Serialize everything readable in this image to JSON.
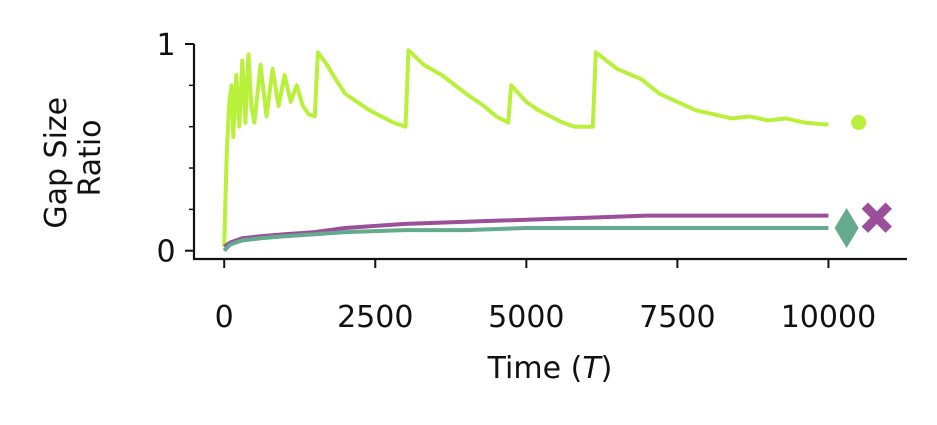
{
  "chart_data": {
    "type": "line",
    "xlabel_prefix": "Time (",
    "xlabel_var": "T",
    "xlabel_suffix": ")",
    "ylabel_lines": [
      "Gap Size",
      "Ratio"
    ],
    "xlim": [
      -500,
      11300
    ],
    "ylim": [
      -0.04,
      1.0
    ],
    "x_ticks": [
      0,
      2500,
      5000,
      7500,
      10000
    ],
    "x_tick_labels": [
      "0",
      "2500",
      "5000",
      "7500",
      "10000"
    ],
    "y_ticks": [
      0,
      1
    ],
    "y_tick_labels": [
      "0",
      "1"
    ],
    "y_minor_ticks": [
      0.2,
      0.4,
      0.6,
      0.8
    ],
    "grid": false,
    "legend": "none",
    "series": [
      {
        "color": "#b9f03c",
        "marker": "circle",
        "marker_x": 10500,
        "marker_y": 0.62,
        "points": [
          [
            0,
            0.02
          ],
          [
            40,
            0.45
          ],
          [
            80,
            0.7
          ],
          [
            120,
            0.8
          ],
          [
            150,
            0.55
          ],
          [
            200,
            0.85
          ],
          [
            250,
            0.6
          ],
          [
            300,
            0.92
          ],
          [
            350,
            0.62
          ],
          [
            400,
            0.95
          ],
          [
            450,
            0.7
          ],
          [
            500,
            0.62
          ],
          [
            600,
            0.9
          ],
          [
            700,
            0.65
          ],
          [
            800,
            0.88
          ],
          [
            900,
            0.7
          ],
          [
            1000,
            0.85
          ],
          [
            1100,
            0.72
          ],
          [
            1200,
            0.8
          ],
          [
            1300,
            0.7
          ],
          [
            1400,
            0.66
          ],
          [
            1500,
            0.65
          ],
          [
            1550,
            0.96
          ],
          [
            1700,
            0.9
          ],
          [
            1800,
            0.85
          ],
          [
            2000,
            0.76
          ],
          [
            2200,
            0.72
          ],
          [
            2400,
            0.68
          ],
          [
            2600,
            0.65
          ],
          [
            2800,
            0.62
          ],
          [
            3000,
            0.6
          ],
          [
            3050,
            0.97
          ],
          [
            3300,
            0.9
          ],
          [
            3600,
            0.85
          ],
          [
            4000,
            0.76
          ],
          [
            4300,
            0.7
          ],
          [
            4500,
            0.65
          ],
          [
            4700,
            0.62
          ],
          [
            4750,
            0.8
          ],
          [
            5000,
            0.72
          ],
          [
            5200,
            0.68
          ],
          [
            5400,
            0.65
          ],
          [
            5600,
            0.62
          ],
          [
            5800,
            0.6
          ],
          [
            6100,
            0.6
          ],
          [
            6150,
            0.96
          ],
          [
            6500,
            0.88
          ],
          [
            6900,
            0.83
          ],
          [
            7200,
            0.76
          ],
          [
            7500,
            0.72
          ],
          [
            7800,
            0.68
          ],
          [
            8100,
            0.66
          ],
          [
            8400,
            0.64
          ],
          [
            8700,
            0.65
          ],
          [
            9000,
            0.63
          ],
          [
            9300,
            0.64
          ],
          [
            9600,
            0.62
          ],
          [
            10000,
            0.61
          ]
        ]
      },
      {
        "color": "#9b4f9b",
        "marker": "x",
        "marker_x": 10800,
        "marker_y": 0.16,
        "points": [
          [
            0,
            0.02
          ],
          [
            100,
            0.04
          ],
          [
            300,
            0.06
          ],
          [
            600,
            0.07
          ],
          [
            1000,
            0.08
          ],
          [
            1500,
            0.09
          ],
          [
            2000,
            0.11
          ],
          [
            2500,
            0.12
          ],
          [
            3000,
            0.13
          ],
          [
            4000,
            0.14
          ],
          [
            5000,
            0.15
          ],
          [
            6000,
            0.16
          ],
          [
            7000,
            0.17
          ],
          [
            8000,
            0.17
          ],
          [
            9000,
            0.17
          ],
          [
            10000,
            0.17
          ]
        ]
      },
      {
        "color": "#64aa8c",
        "marker": "diamond",
        "marker_x": 10300,
        "marker_y": 0.11,
        "points": [
          [
            0,
            0.0
          ],
          [
            100,
            0.03
          ],
          [
            300,
            0.05
          ],
          [
            600,
            0.06
          ],
          [
            1000,
            0.07
          ],
          [
            1500,
            0.08
          ],
          [
            2000,
            0.09
          ],
          [
            3000,
            0.1
          ],
          [
            4000,
            0.1
          ],
          [
            5000,
            0.11
          ],
          [
            6000,
            0.11
          ],
          [
            7000,
            0.11
          ],
          [
            8000,
            0.11
          ],
          [
            9000,
            0.11
          ],
          [
            10000,
            0.11
          ]
        ]
      }
    ]
  }
}
